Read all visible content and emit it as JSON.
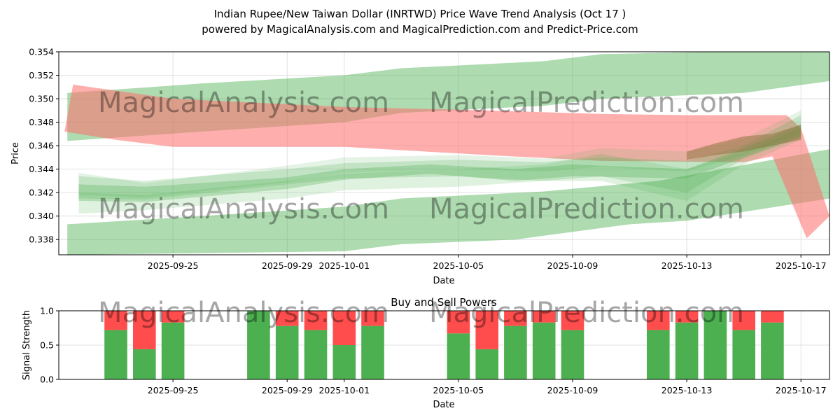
{
  "figure": {
    "title_line1": "Indian Rupee/New Taiwan Dollar (INRTWD) Price Wave Trend Analysis (Oct 17 )",
    "title_line2": "powered by MagicalAnalysis.com and MagicalPrediction.com and Predict-Price.com",
    "watermarks": [
      "MagicalAnalysis.com",
      "MagicalPrediction.com"
    ]
  },
  "chart_data": [
    {
      "type": "area",
      "title": "",
      "xlabel": "Date",
      "ylabel": "Price",
      "x_range": [
        "2025-09-21",
        "2025-10-18"
      ],
      "ylim": [
        0.3367,
        0.354
      ],
      "yticks": [
        0.338,
        0.34,
        0.342,
        0.344,
        0.346,
        0.348,
        0.35,
        0.352,
        0.354
      ],
      "ytick_labels": [
        "0.338",
        "0.340",
        "0.342",
        "0.344",
        "0.346",
        "0.348",
        "0.350",
        "0.352",
        "0.354"
      ],
      "xticks": [
        "2025-09-25",
        "2025-09-29",
        "2025-10-01",
        "2025-10-05",
        "2025-10-09",
        "2025-10-13",
        "2025-10-17"
      ],
      "grid": true,
      "colors": {
        "bull": "#4caf50",
        "bear": "#ff6b6b"
      },
      "bands": [
        {
          "name": "upper-green-channel",
          "color": "bull",
          "opacity": 0.45,
          "top": [
            [
              "2025-09-21.3",
              0.3505
            ],
            [
              "2025-09-26",
              0.3513
            ],
            [
              "2025-10-01",
              0.352
            ],
            [
              "2025-10-03",
              0.3526
            ],
            [
              "2025-10-08",
              0.3532
            ],
            [
              "2025-10-10",
              0.3538
            ],
            [
              "2025-10-18",
              0.3542
            ]
          ],
          "bottom": [
            [
              "2025-09-21.3",
              0.3464
            ],
            [
              "2025-09-26",
              0.3472
            ],
            [
              "2025-10-01",
              0.348
            ],
            [
              "2025-10-03",
              0.3488
            ],
            [
              "2025-10-08",
              0.3494
            ],
            [
              "2025-10-10",
              0.35
            ],
            [
              "2025-10-15",
              0.3505
            ],
            [
              "2025-10-18",
              0.3515
            ]
          ]
        },
        {
          "name": "lower-green-channel",
          "color": "bull",
          "opacity": 0.45,
          "top": [
            [
              "2025-09-21.3",
              0.3393
            ],
            [
              "2025-09-26",
              0.34
            ],
            [
              "2025-10-01",
              0.3408
            ],
            [
              "2025-10-03",
              0.3415
            ],
            [
              "2025-10-08",
              0.3421
            ],
            [
              "2025-10-12",
              0.343
            ],
            [
              "2025-10-18",
              0.3457
            ]
          ],
          "bottom": [
            [
              "2025-09-21.3",
              0.3367
            ],
            [
              "2025-10-01",
              0.337
            ],
            [
              "2025-10-03",
              0.3376
            ],
            [
              "2025-10-07",
              0.338
            ],
            [
              "2025-10-11",
              0.3393
            ],
            [
              "2025-10-13",
              0.3396
            ],
            [
              "2025-10-18",
              0.3415
            ]
          ]
        },
        {
          "name": "red-trend-band",
          "color": "bear",
          "opacity": 0.55,
          "top": [
            [
              "2025-09-21.5",
              0.3512
            ],
            [
              "2025-09-25",
              0.35
            ],
            [
              "2025-10-01",
              0.3493
            ],
            [
              "2025-10-06",
              0.349
            ],
            [
              "2025-10-10",
              0.3487
            ],
            [
              "2025-10-13",
              0.3486
            ],
            [
              "2025-10-16.5",
              0.3486
            ],
            [
              "2025-10-17",
              0.3475
            ],
            [
              "2025-10-18",
              0.34
            ]
          ],
          "bottom": [
            [
              "2025-09-21.2",
              0.3472
            ],
            [
              "2025-09-23",
              0.3465
            ],
            [
              "2025-09-25",
              0.3459
            ],
            [
              "2025-10-01",
              0.3459
            ],
            [
              "2025-10-06",
              0.3452
            ],
            [
              "2025-10-10",
              0.3447
            ],
            [
              "2025-10-15",
              0.3446
            ],
            [
              "2025-10-16",
              0.3451
            ],
            [
              "2025-10-17.2",
              0.3381
            ]
          ]
        },
        {
          "name": "price-wave-1",
          "color": "bull",
          "opacity": 0.3,
          "top": [
            [
              "2025-09-21.7",
              0.3427
            ],
            [
              "2025-09-24",
              0.3425
            ],
            [
              "2025-09-29",
              0.3433
            ],
            [
              "2025-10-01",
              0.344
            ],
            [
              "2025-10-04",
              0.3444
            ],
            [
              "2025-10-07",
              0.344
            ],
            [
              "2025-10-09",
              0.3444
            ],
            [
              "2025-10-13",
              0.344
            ],
            [
              "2025-10-15",
              0.3458
            ],
            [
              "2025-10-17",
              0.3478
            ]
          ],
          "bottom": [
            [
              "2025-09-21.7",
              0.3413
            ],
            [
              "2025-09-24",
              0.3412
            ],
            [
              "2025-09-29",
              0.3423
            ],
            [
              "2025-10-01",
              0.3431
            ],
            [
              "2025-10-04",
              0.3436
            ],
            [
              "2025-10-07",
              0.343
            ],
            [
              "2025-10-09",
              0.3434
            ],
            [
              "2025-10-13",
              0.3432
            ],
            [
              "2025-10-15",
              0.345
            ],
            [
              "2025-10-17",
              0.3468
            ]
          ]
        },
        {
          "name": "price-wave-2",
          "color": "bull",
          "opacity": 0.22,
          "top": [
            [
              "2025-09-21.7",
              0.3434
            ],
            [
              "2025-09-24",
              0.343
            ],
            [
              "2025-09-29",
              0.344
            ],
            [
              "2025-10-01",
              0.3445
            ],
            [
              "2025-10-05",
              0.3448
            ],
            [
              "2025-10-08",
              0.3446
            ],
            [
              "2025-10-10",
              0.345
            ],
            [
              "2025-10-13",
              0.3447
            ],
            [
              "2025-10-15",
              0.346
            ],
            [
              "2025-10-17",
              0.3486
            ]
          ],
          "bottom": [
            [
              "2025-09-21.7",
              0.3415
            ],
            [
              "2025-09-24",
              0.3414
            ],
            [
              "2025-09-29",
              0.3427
            ],
            [
              "2025-10-01",
              0.3432
            ],
            [
              "2025-10-05",
              0.3434
            ],
            [
              "2025-10-08",
              0.343
            ],
            [
              "2025-10-10",
              0.3434
            ],
            [
              "2025-10-13",
              0.342
            ],
            [
              "2025-10-15",
              0.3449
            ],
            [
              "2025-10-17",
              0.3467
            ]
          ]
        },
        {
          "name": "price-wave-3",
          "color": "bull",
          "opacity": 0.18,
          "top": [
            [
              "2025-09-21.7",
              0.342
            ],
            [
              "2025-09-24",
              0.3418
            ],
            [
              "2025-09-29",
              0.343
            ],
            [
              "2025-10-01",
              0.3436
            ],
            [
              "2025-10-05",
              0.344
            ],
            [
              "2025-10-08",
              0.3444
            ],
            [
              "2025-10-10",
              0.3453
            ],
            [
              "2025-10-13",
              0.344
            ],
            [
              "2025-10-15",
              0.3455
            ],
            [
              "2025-10-17",
              0.3475
            ]
          ],
          "bottom": [
            [
              "2025-09-21.7",
              0.3402
            ],
            [
              "2025-09-24",
              0.3405
            ],
            [
              "2025-09-29",
              0.3415
            ],
            [
              "2025-10-01",
              0.3422
            ],
            [
              "2025-10-05",
              0.3425
            ],
            [
              "2025-10-08",
              0.343
            ],
            [
              "2025-10-10",
              0.343
            ],
            [
              "2025-10-13",
              0.3413
            ],
            [
              "2025-10-15",
              0.3444
            ],
            [
              "2025-10-17",
              0.3465
            ]
          ]
        },
        {
          "name": "price-wave-4",
          "color": "bull",
          "opacity": 0.15,
          "top": [
            [
              "2025-09-21.7",
              0.3437
            ],
            [
              "2025-09-24",
              0.3428
            ],
            [
              "2025-09-29",
              0.3443
            ],
            [
              "2025-10-01",
              0.345
            ],
            [
              "2025-10-05",
              0.3452
            ],
            [
              "2025-10-08",
              0.3449
            ],
            [
              "2025-10-10",
              0.3458
            ],
            [
              "2025-10-13",
              0.3455
            ],
            [
              "2025-10-15",
              0.3466
            ],
            [
              "2025-10-17",
              0.349
            ]
          ],
          "bottom": [
            [
              "2025-09-21.7",
              0.3418
            ],
            [
              "2025-09-24",
              0.3416
            ],
            [
              "2025-09-29",
              0.3429
            ],
            [
              "2025-10-01",
              0.3437
            ],
            [
              "2025-10-05",
              0.344
            ],
            [
              "2025-10-08",
              0.3438
            ],
            [
              "2025-10-10",
              0.3442
            ],
            [
              "2025-10-13",
              0.3438
            ],
            [
              "2025-10-15",
              0.3452
            ],
            [
              "2025-10-17",
              0.347
            ]
          ]
        },
        {
          "name": "brown-wave",
          "color": "#8b6f3a",
          "opacity": 0.5,
          "top": [
            [
              "2025-10-13",
              0.3455
            ],
            [
              "2025-10-14",
              0.3462
            ],
            [
              "2025-10-15",
              0.3468
            ],
            [
              "2025-10-16",
              0.347
            ],
            [
              "2025-10-17",
              0.3478
            ]
          ],
          "bottom": [
            [
              "2025-10-13",
              0.3448
            ],
            [
              "2025-10-14",
              0.3452
            ],
            [
              "2025-10-15",
              0.3455
            ],
            [
              "2025-10-16",
              0.346
            ],
            [
              "2025-10-17",
              0.3465
            ]
          ]
        }
      ]
    },
    {
      "type": "bar",
      "title": "Buy and Sell Powers",
      "xlabel": "Date",
      "ylabel": "Signal Strength",
      "x_range": [
        "2025-09-21",
        "2025-10-18"
      ],
      "ylim": [
        0,
        1
      ],
      "yticks": [
        0.0,
        0.5,
        1.0
      ],
      "ytick_labels": [
        "0.0",
        "0.5",
        "1.0"
      ],
      "xticks": [
        "2025-09-25",
        "2025-09-29",
        "2025-10-01",
        "2025-10-05",
        "2025-10-09",
        "2025-10-13",
        "2025-10-17"
      ],
      "grid": true,
      "series": [
        {
          "name": "Buy",
          "color": "#4caf50"
        },
        {
          "name": "Sell",
          "color": "#ff4d4d"
        }
      ],
      "bars": [
        {
          "date": "2025-09-23",
          "buy": 0.72
        },
        {
          "date": "2025-09-24",
          "buy": 0.44
        },
        {
          "date": "2025-09-25",
          "buy": 0.83
        },
        {
          "date": "2025-09-28",
          "buy": 1.0
        },
        {
          "date": "2025-09-29",
          "buy": 0.78
        },
        {
          "date": "2025-09-30",
          "buy": 0.72
        },
        {
          "date": "2025-10-01",
          "buy": 0.5
        },
        {
          "date": "2025-10-02",
          "buy": 0.78
        },
        {
          "date": "2025-10-05",
          "buy": 0.67
        },
        {
          "date": "2025-10-06",
          "buy": 0.44
        },
        {
          "date": "2025-10-07",
          "buy": 0.78
        },
        {
          "date": "2025-10-08",
          "buy": 0.83
        },
        {
          "date": "2025-10-09",
          "buy": 0.72
        },
        {
          "date": "2025-10-12",
          "buy": 0.72
        },
        {
          "date": "2025-10-13",
          "buy": 0.83
        },
        {
          "date": "2025-10-14",
          "buy": 1.0
        },
        {
          "date": "2025-10-15",
          "buy": 0.72
        },
        {
          "date": "2025-10-16",
          "buy": 0.83
        }
      ]
    }
  ]
}
